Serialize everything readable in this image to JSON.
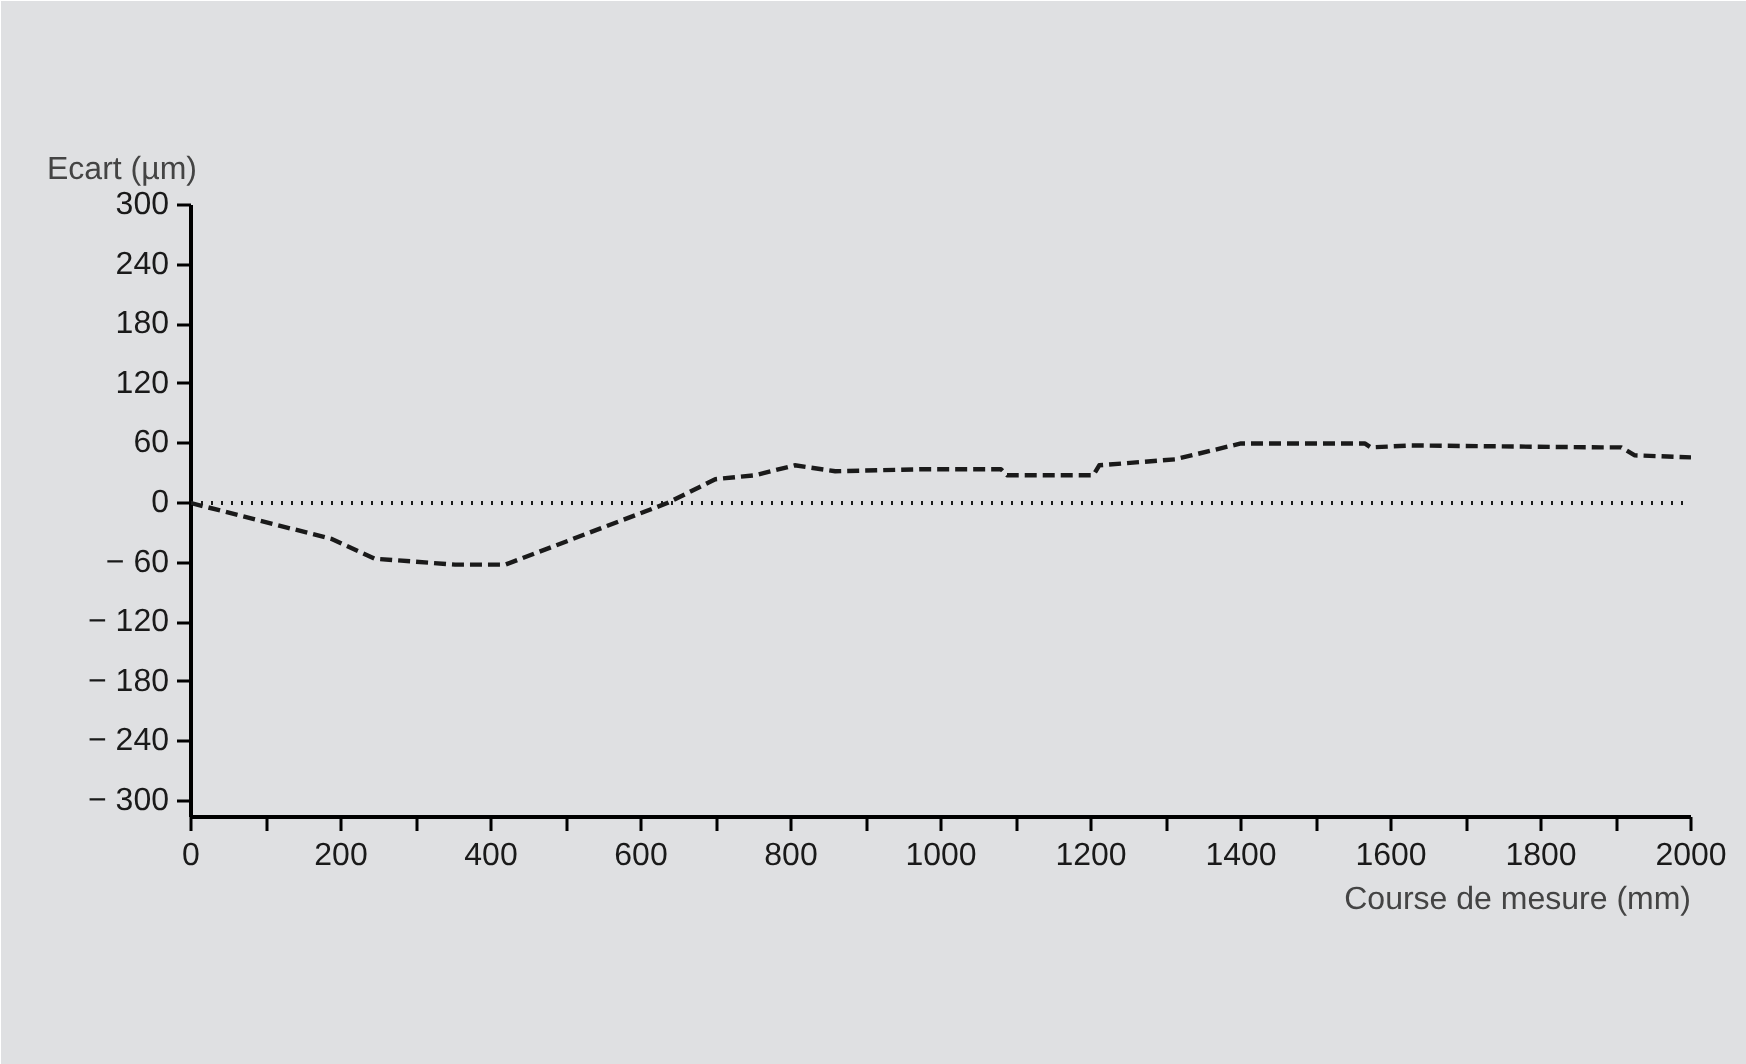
{
  "chart_data": {
    "type": "line",
    "xlabel": "Course de mesure (mm)",
    "ylabel": "Ecart (µm)",
    "x": [
      0,
      187,
      245,
      352,
      419,
      635,
      699,
      752,
      805,
      859,
      973,
      1080,
      1088,
      1203,
      1211,
      1312,
      1400,
      1565,
      1573,
      1627,
      1880,
      1907,
      1925,
      2000
    ],
    "series": [
      {
        "color": "#1a1a1a",
        "values": [
          0,
          -36,
          -56,
          -62,
          -62,
          0,
          24,
          28,
          38,
          32,
          34,
          34,
          28,
          28,
          38,
          44,
          60,
          60,
          56,
          58,
          56,
          56,
          48,
          46
        ]
      }
    ],
    "line_style": "dashed",
    "marker": "none",
    "grid": false,
    "xlim": [
      0,
      2000
    ],
    "ylim": [
      -316,
      300
    ],
    "xticks": [
      0,
      {
        "value": 100,
        "label": null
      },
      200,
      {
        "value": 300,
        "label": null
      },
      400,
      {
        "value": 500,
        "label": null
      },
      600,
      {
        "value": 700,
        "label": null
      },
      800,
      {
        "value": 900,
        "label": null
      },
      1000,
      {
        "value": 1100,
        "label": null
      },
      1200,
      {
        "value": 1300,
        "label": null
      },
      1400,
      {
        "value": 1500,
        "label": null
      },
      1600,
      {
        "value": 1700,
        "label": null
      },
      1800,
      {
        "value": 1900,
        "label": null
      },
      2000
    ],
    "yticks": [
      300,
      240,
      180,
      120,
      60,
      0,
      {
        "value": -60,
        "label": "− 60"
      },
      {
        "value": -120,
        "label": "− 120"
      },
      {
        "value": -180,
        "label": "− 180"
      },
      {
        "value": -240,
        "label": "− 240"
      },
      {
        "value": -300,
        "label": "− 300"
      }
    ],
    "ref_lines": [
      {
        "axis": "y",
        "value": 0,
        "label": null,
        "color": "#1a1a1a",
        "line_style": "dotted"
      }
    ]
  }
}
